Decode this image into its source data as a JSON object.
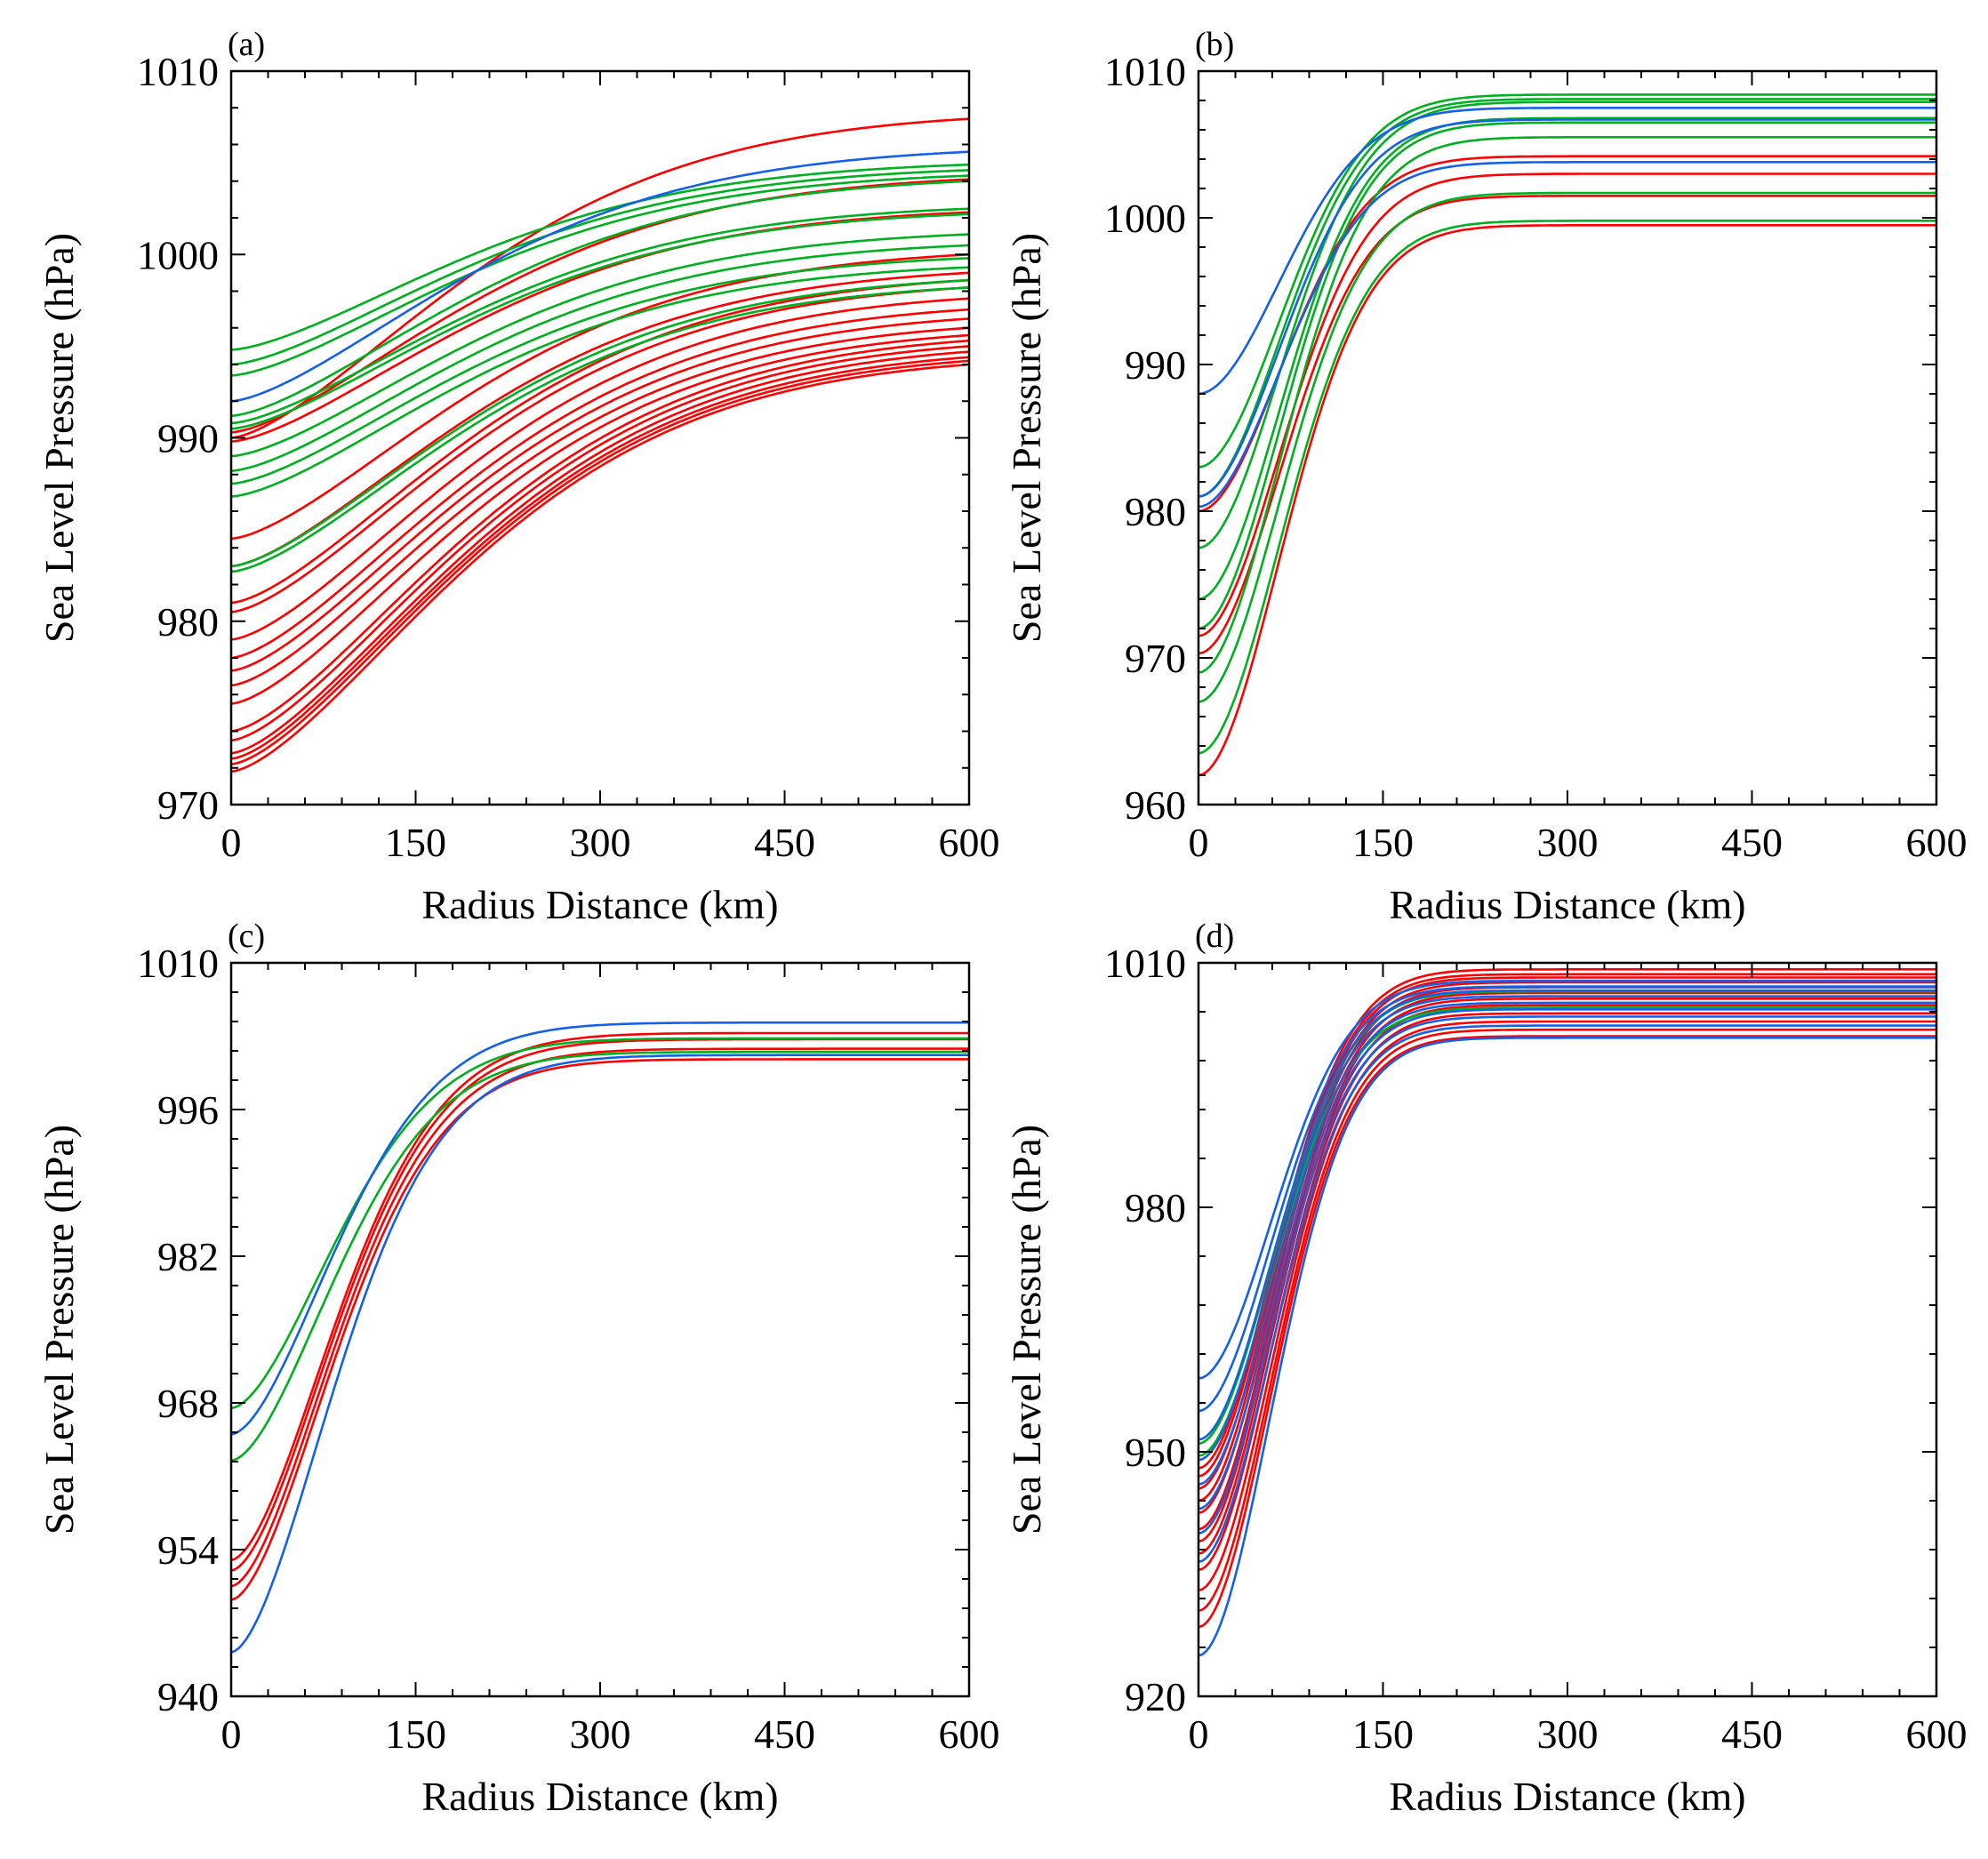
{
  "colors": {
    "red": "#ff0000",
    "green": "#00b020",
    "blue": "#1560e8",
    "axis": "#000000"
  },
  "chart_data": [
    {
      "type": "line",
      "panel": "(a)",
      "xlabel": "Radius Distance (km)",
      "ylabel": "Sea Level Pressure (hPa)",
      "xlim": [
        0,
        600
      ],
      "ylim": [
        970,
        1010
      ],
      "xticks": [
        0,
        150,
        300,
        450,
        600
      ],
      "yticks": [
        970,
        980,
        990,
        1000,
        1010
      ],
      "grid": false,
      "profile_shape": {
        "r_scale_km": 250,
        "exponent": 1.5
      },
      "series": [
        {
          "name": "a-r1",
          "color": "red",
          "p0": 990.0,
          "p600": 1007.4
        },
        {
          "name": "a-r2",
          "color": "red",
          "p0": 990.3,
          "p600": 1004.1
        },
        {
          "name": "a-r3",
          "color": "red",
          "p0": 989.8,
          "p600": 1002.3
        },
        {
          "name": "a-r4",
          "color": "red",
          "p0": 984.5,
          "p600": 1000.0
        },
        {
          "name": "a-r5",
          "color": "red",
          "p0": 983.0,
          "p600": 999.0
        },
        {
          "name": "a-r6",
          "color": "red",
          "p0": 981.0,
          "p600": 998.6
        },
        {
          "name": "a-r7",
          "color": "red",
          "p0": 980.5,
          "p600": 998.2
        },
        {
          "name": "a-r8",
          "color": "red",
          "p0": 979.0,
          "p600": 997.6
        },
        {
          "name": "a-r9",
          "color": "red",
          "p0": 978.0,
          "p600": 997.0
        },
        {
          "name": "a-r10",
          "color": "red",
          "p0": 977.3,
          "p600": 996.5
        },
        {
          "name": "a-r11",
          "color": "red",
          "p0": 976.5,
          "p600": 996.0
        },
        {
          "name": "a-r12",
          "color": "red",
          "p0": 975.5,
          "p600": 995.6
        },
        {
          "name": "a-r13",
          "color": "red",
          "p0": 974.0,
          "p600": 995.3
        },
        {
          "name": "a-r14",
          "color": "red",
          "p0": 973.5,
          "p600": 995.0
        },
        {
          "name": "a-r15",
          "color": "red",
          "p0": 972.8,
          "p600": 994.7
        },
        {
          "name": "a-r16",
          "color": "red",
          "p0": 972.5,
          "p600": 994.4
        },
        {
          "name": "a-r17",
          "color": "red",
          "p0": 972.2,
          "p600": 994.2
        },
        {
          "name": "a-r18",
          "color": "red",
          "p0": 971.8,
          "p600": 994.0
        },
        {
          "name": "a-g1",
          "color": "green",
          "p0": 994.8,
          "p600": 1004.9
        },
        {
          "name": "a-g2",
          "color": "green",
          "p0": 994.0,
          "p600": 1004.6
        },
        {
          "name": "a-g3",
          "color": "green",
          "p0": 993.4,
          "p600": 1004.3
        },
        {
          "name": "a-g4",
          "color": "green",
          "p0": 991.2,
          "p600": 1004.0
        },
        {
          "name": "a-g5",
          "color": "green",
          "p0": 990.8,
          "p600": 1002.5
        },
        {
          "name": "a-g6",
          "color": "green",
          "p0": 990.5,
          "p600": 1002.2
        },
        {
          "name": "a-g7",
          "color": "green",
          "p0": 989.0,
          "p600": 1001.1
        },
        {
          "name": "a-g8",
          "color": "green",
          "p0": 988.2,
          "p600": 1000.5
        },
        {
          "name": "a-g9",
          "color": "green",
          "p0": 987.5,
          "p600": 999.8
        },
        {
          "name": "a-g10",
          "color": "green",
          "p0": 986.8,
          "p600": 999.3
        },
        {
          "name": "a-g11",
          "color": "green",
          "p0": 983.0,
          "p600": 998.6
        },
        {
          "name": "a-g12",
          "color": "green",
          "p0": 982.7,
          "p600": 998.2
        },
        {
          "name": "a-b1",
          "color": "blue",
          "p0": 992.0,
          "p600": 1005.6
        }
      ]
    },
    {
      "type": "line",
      "panel": "(b)",
      "xlabel": "Radius Distance (km)",
      "ylabel": "Sea Level Pressure (hPa)",
      "xlim": [
        0,
        600
      ],
      "ylim": [
        960,
        1010
      ],
      "xticks": [
        0,
        150,
        300,
        450,
        600
      ],
      "yticks": [
        960,
        970,
        980,
        990,
        1000,
        1010
      ],
      "grid": false,
      "profile_shape": {
        "r_scale_km": 95,
        "exponent": 1.9
      },
      "series": [
        {
          "name": "b-r1",
          "color": "red",
          "p0": 980.0,
          "p600": 1004.2
        },
        {
          "name": "b-r2",
          "color": "red",
          "p0": 971.5,
          "p600": 1003.0
        },
        {
          "name": "b-r3",
          "color": "red",
          "p0": 970.3,
          "p600": 1001.5
        },
        {
          "name": "b-r4",
          "color": "red",
          "p0": 962.0,
          "p600": 999.5
        },
        {
          "name": "b-g1",
          "color": "green",
          "p0": 983.0,
          "p600": 1008.4
        },
        {
          "name": "b-g2",
          "color": "green",
          "p0": 981.0,
          "p600": 1008.1
        },
        {
          "name": "b-g3",
          "color": "green",
          "p0": 977.5,
          "p600": 1007.9
        },
        {
          "name": "b-g4",
          "color": "green",
          "p0": 974.0,
          "p600": 1006.8
        },
        {
          "name": "b-g5",
          "color": "green",
          "p0": 972.0,
          "p600": 1006.5
        },
        {
          "name": "b-g6",
          "color": "green",
          "p0": 969.0,
          "p600": 1005.5
        },
        {
          "name": "b-g7",
          "color": "green",
          "p0": 967.0,
          "p600": 1001.7
        },
        {
          "name": "b-g8",
          "color": "green",
          "p0": 963.5,
          "p600": 999.8
        },
        {
          "name": "b-b1",
          "color": "blue",
          "p0": 988.0,
          "p600": 1007.5
        },
        {
          "name": "b-b2",
          "color": "blue",
          "p0": 981.0,
          "p600": 1006.7
        },
        {
          "name": "b-b3",
          "color": "blue",
          "p0": 980.3,
          "p600": 1003.8
        }
      ]
    },
    {
      "type": "line",
      "panel": "(c)",
      "xlabel": "Radius Distance (km)",
      "ylabel": "Sea Level Pressure (hPa)",
      "xlim": [
        0,
        600
      ],
      "ylim": [
        940,
        1010
      ],
      "xticks": [
        0,
        150,
        300,
        450,
        600
      ],
      "yticks": [
        940,
        954,
        968,
        982,
        996,
        1010
      ],
      "grid": false,
      "profile_shape": {
        "r_scale_km": 115,
        "exponent": 1.7
      },
      "series": [
        {
          "name": "c-r1",
          "color": "red",
          "p0": 953.0,
          "p600": 1003.3
        },
        {
          "name": "c-r2",
          "color": "red",
          "p0": 952.0,
          "p600": 1002.7
        },
        {
          "name": "c-r3",
          "color": "red",
          "p0": 950.5,
          "p600": 1001.8
        },
        {
          "name": "c-r4",
          "color": "red",
          "p0": 949.2,
          "p600": 1000.8
        },
        {
          "name": "c-g1",
          "color": "green",
          "p0": 967.5,
          "p600": 1002.8
        },
        {
          "name": "c-g2",
          "color": "green",
          "p0": 962.5,
          "p600": 1001.5
        },
        {
          "name": "c-b1",
          "color": "blue",
          "p0": 965.0,
          "p600": 1004.3
        },
        {
          "name": "c-b2",
          "color": "blue",
          "p0": 944.2,
          "p600": 1001.2
        }
      ]
    },
    {
      "type": "line",
      "panel": "(d)",
      "xlabel": "Radius Distance (km)",
      "ylabel": "Sea Level Pressure (hPa)",
      "xlim": [
        0,
        600
      ],
      "ylim": [
        920,
        1010
      ],
      "xticks": [
        0,
        150,
        300,
        450,
        600
      ],
      "yticks": [
        920,
        950,
        980,
        1010
      ],
      "grid": false,
      "profile_shape": {
        "r_scale_km": 85,
        "exponent": 1.9
      },
      "series": [
        {
          "name": "d-r1",
          "color": "red",
          "p0": 948.0,
          "p600": 1009.2
        },
        {
          "name": "d-r2",
          "color": "red",
          "p0": 947.0,
          "p600": 1008.6
        },
        {
          "name": "d-r3",
          "color": "red",
          "p0": 945.5,
          "p600": 1008.2
        },
        {
          "name": "d-r4",
          "color": "red",
          "p0": 944.0,
          "p600": 1007.6
        },
        {
          "name": "d-r5",
          "color": "red",
          "p0": 942.5,
          "p600": 1007.0
        },
        {
          "name": "d-r6",
          "color": "red",
          "p0": 940.5,
          "p600": 1006.3
        },
        {
          "name": "d-r7",
          "color": "red",
          "p0": 939.0,
          "p600": 1005.6
        },
        {
          "name": "d-r8",
          "color": "red",
          "p0": 937.5,
          "p600": 1004.8
        },
        {
          "name": "d-r9",
          "color": "red",
          "p0": 935.5,
          "p600": 1003.8
        },
        {
          "name": "d-r10",
          "color": "red",
          "p0": 933.0,
          "p600": 1002.8
        },
        {
          "name": "d-r11",
          "color": "red",
          "p0": 930.5,
          "p600": 1001.8
        },
        {
          "name": "d-r12",
          "color": "red",
          "p0": 928.5,
          "p600": 1001.0
        },
        {
          "name": "d-g1",
          "color": "green",
          "p0": 951.0,
          "p600": 1006.5
        },
        {
          "name": "d-g2",
          "color": "green",
          "p0": 949.5,
          "p600": 1004.5
        },
        {
          "name": "d-b1",
          "color": "blue",
          "p0": 959.0,
          "p600": 1007.8
        },
        {
          "name": "d-b2",
          "color": "blue",
          "p0": 955.0,
          "p600": 1007.1
        },
        {
          "name": "d-b3",
          "color": "blue",
          "p0": 951.5,
          "p600": 1006.6
        },
        {
          "name": "d-b4",
          "color": "blue",
          "p0": 949.0,
          "p600": 1005.9
        },
        {
          "name": "d-b5",
          "color": "blue",
          "p0": 946.0,
          "p600": 1005.1
        },
        {
          "name": "d-b6",
          "color": "blue",
          "p0": 943.0,
          "p600": 1004.3
        },
        {
          "name": "d-b7",
          "color": "blue",
          "p0": 940.0,
          "p600": 1003.4
        },
        {
          "name": "d-b8",
          "color": "blue",
          "p0": 936.5,
          "p600": 1002.3
        },
        {
          "name": "d-b9",
          "color": "blue",
          "p0": 925.0,
          "p600": 1000.8
        }
      ]
    }
  ]
}
